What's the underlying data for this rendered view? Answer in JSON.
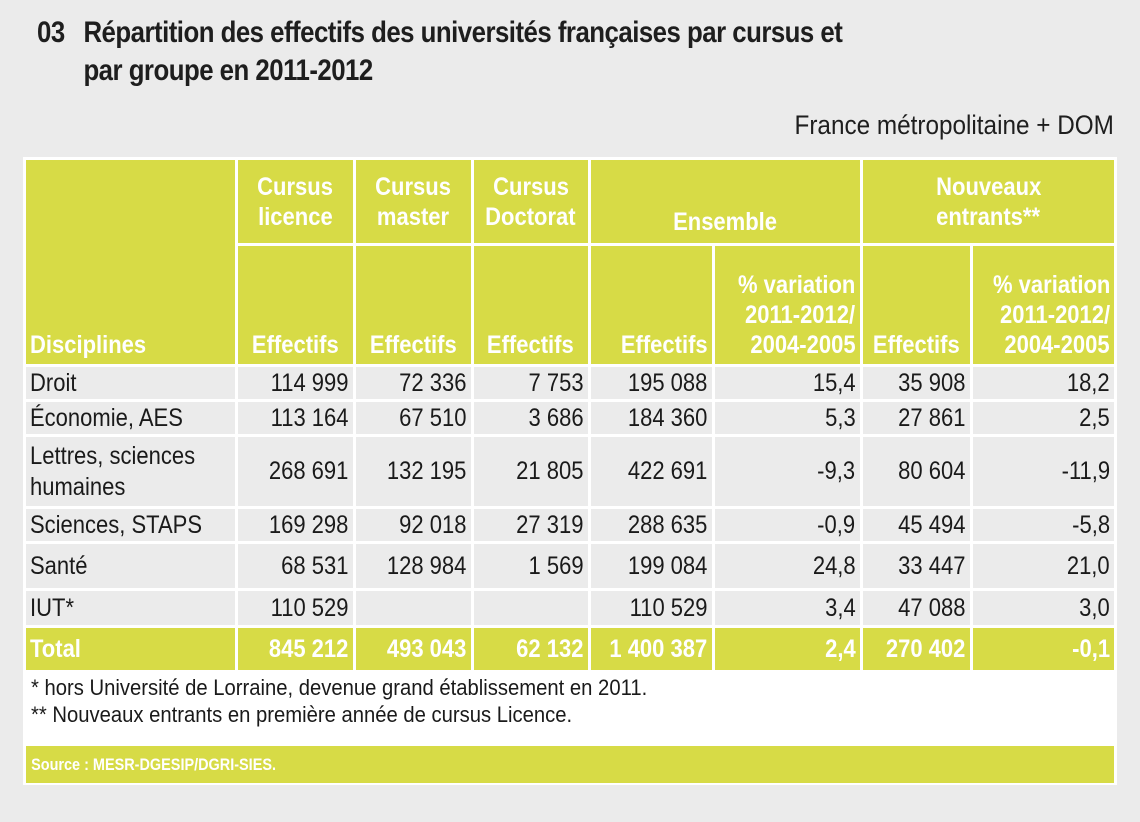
{
  "header": {
    "number": "03",
    "title_line1": "Répartition des effectifs des universités françaises par cursus et",
    "title_line2": "par groupe en 2011-2012",
    "scope": "France métropolitaine + DOM"
  },
  "colors": {
    "accent": "#d7db46",
    "background": "#ebebeb",
    "border": "#ffffff"
  },
  "table": {
    "group_headers": {
      "licence": "Cursus licence",
      "licence_l1": "Cursus",
      "licence_l2": "licence",
      "master_l1": "Cursus",
      "master_l2": "master",
      "doctorat_l1": "Cursus",
      "doctorat_l2": "Doctorat",
      "ensemble": "Ensemble",
      "nouveaux_l1": "Nouveaux",
      "nouveaux_l2": "entrants**"
    },
    "sub_headers": {
      "disciplines": "Disciplines",
      "effectifs": "Effectifs",
      "variation_l1": "% variation",
      "variation_l2": "2011-2012/",
      "variation_l3": "2004-2005"
    },
    "rows": [
      {
        "discipline": "Droit",
        "licence": "114 999",
        "master": "72 336",
        "doctorat": "7 753",
        "ensemble": "195 088",
        "ensemble_var": "15,4",
        "nouveaux": "35 908",
        "nouveaux_var": "18,2"
      },
      {
        "discipline": "Économie, AES",
        "licence": "113 164",
        "master": "67 510",
        "doctorat": "3 686",
        "ensemble": "184 360",
        "ensemble_var": "5,3",
        "nouveaux": "27 861",
        "nouveaux_var": "2,5"
      },
      {
        "discipline": "Lettres, sciences humaines",
        "licence": "268 691",
        "master": "132 195",
        "doctorat": "21 805",
        "ensemble": "422 691",
        "ensemble_var": "-9,3",
        "nouveaux": "80 604",
        "nouveaux_var": "-11,9"
      },
      {
        "discipline": "Sciences, STAPS",
        "licence": "169 298",
        "master": "92 018",
        "doctorat": "27 319",
        "ensemble": "288 635",
        "ensemble_var": "-0,9",
        "nouveaux": "45 494",
        "nouveaux_var": "-5,8"
      },
      {
        "discipline": "Santé",
        "licence": "68 531",
        "master": "128 984",
        "doctorat": "1 569",
        "ensemble": "199 084",
        "ensemble_var": "24,8",
        "nouveaux": "33 447",
        "nouveaux_var": "21,0"
      },
      {
        "discipline": "IUT*",
        "licence": "110 529",
        "master": "",
        "doctorat": "",
        "ensemble": "110 529",
        "ensemble_var": "3,4",
        "nouveaux": "47 088",
        "nouveaux_var": "3,0"
      }
    ],
    "total": {
      "discipline": "Total",
      "licence": "845 212",
      "master": "493 043",
      "doctorat": "62 132",
      "ensemble": "1 400 387",
      "ensemble_var": "2,4",
      "nouveaux": "270 402",
      "nouveaux_var": "-0,1"
    }
  },
  "footnotes": [
    "* hors Université de Lorraine, devenue grand établissement en 2011.",
    "** Nouveaux entrants en première année de cursus Licence."
  ],
  "source": "Source : MESR-DGESIP/DGRI-SIES."
}
